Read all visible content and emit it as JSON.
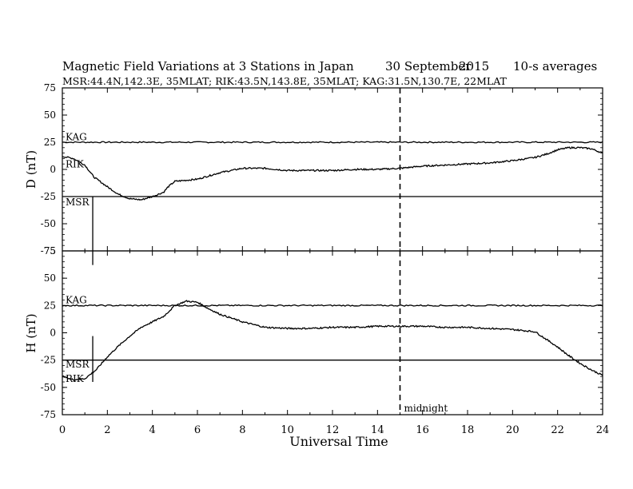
{
  "header": {
    "title": "Magnetic Field Variations at 3 Stations in Japan",
    "date_day": "30 September",
    "date_year": "2015",
    "averaging": "10-s averages",
    "stations_line": "MSR:44.4N,142.3E, 35MLAT;  RIK:43.5N,143.8E, 35MLAT;  KAG:31.5N,130.7E, 22MLAT"
  },
  "chart_data": [
    {
      "type": "line",
      "panel": "top",
      "ylabel": "D (nT)",
      "xlim": [
        0,
        24
      ],
      "ylim": [
        -75,
        75
      ],
      "yticks": [
        75,
        50,
        25,
        0,
        -25,
        -50,
        -75
      ],
      "ytick_labels": [
        "75",
        "50",
        "25",
        "0",
        "-25",
        "-50",
        "-75"
      ],
      "series": [
        {
          "name": "KAG",
          "x": [
            0,
            24
          ],
          "y": [
            25,
            25
          ]
        },
        {
          "name": "RIK",
          "x": [
            0,
            0.5,
            1.0,
            1.4,
            2.0,
            2.5,
            3.0,
            3.5,
            4.0,
            4.5,
            4.7,
            5.0,
            5.5,
            6.0,
            7.0,
            8.0,
            9.0,
            10.0,
            11.0,
            12.0,
            13.0,
            14.0,
            15.0,
            16.0,
            17.0,
            18.0,
            19.0,
            20.0,
            21.0,
            21.5,
            22.0,
            22.5,
            23.0,
            23.5,
            24.0
          ],
          "y": [
            12,
            10,
            4,
            -7,
            -16,
            -23,
            -27,
            -28,
            -25,
            -21,
            -16,
            -11,
            -10,
            -9,
            -3,
            1,
            1,
            -1,
            -1,
            -1,
            0,
            0,
            1,
            3,
            4,
            5,
            6,
            8,
            11,
            14,
            18,
            20,
            20,
            19,
            15
          ]
        },
        {
          "name": "MSR",
          "x": [
            0,
            24
          ],
          "y": [
            -25,
            -25
          ]
        }
      ],
      "annotations": [
        "KAG",
        "RIK",
        "MSR"
      ]
    },
    {
      "type": "line",
      "panel": "bottom",
      "ylabel": "H (nT)",
      "xlabel": "Universal Time",
      "xlim": [
        0,
        24
      ],
      "ylim": [
        -75,
        75
      ],
      "xticks": [
        0,
        2,
        4,
        6,
        8,
        10,
        12,
        14,
        16,
        18,
        20,
        22,
        24
      ],
      "yticks": [
        75,
        50,
        25,
        0,
        -25,
        -50,
        -75
      ],
      "ytick_labels": [
        "75",
        "50",
        "25",
        "0",
        "-25",
        "-50",
        "-75"
      ],
      "series": [
        {
          "name": "KAG",
          "x": [
            0,
            24
          ],
          "y": [
            25,
            25
          ]
        },
        {
          "name": "RIK",
          "x": [
            0,
            0.5,
            1.0,
            1.5,
            2.0,
            2.5,
            3.0,
            3.5,
            4.0,
            4.5,
            5.0,
            5.5,
            6.0,
            6.5,
            7.0,
            8.0,
            9.0,
            10.0,
            11.0,
            12.0,
            13.0,
            14.0,
            15.0,
            16.0,
            17.0,
            18.0,
            19.0,
            20.0,
            21.0,
            21.5,
            22.0,
            22.5,
            23.0,
            23.5,
            24.0
          ],
          "y": [
            -40,
            -43,
            -42,
            -34,
            -22,
            -12,
            -3,
            5,
            10,
            15,
            25,
            29,
            28,
            22,
            17,
            10,
            5,
            4,
            4,
            5,
            5,
            6,
            6,
            6,
            5,
            5,
            4,
            3,
            1,
            -6,
            -13,
            -21,
            -28,
            -34,
            -39
          ]
        },
        {
          "name": "MSR",
          "x": [
            0,
            24
          ],
          "y": [
            -25,
            -25
          ]
        }
      ],
      "annotations": [
        "KAG",
        "MSR",
        "RIK"
      ]
    }
  ],
  "midnight": {
    "x": 15,
    "label": "midnight"
  },
  "vertical_markers": [
    {
      "panel": "top",
      "x": 1.35,
      "y_top": -25,
      "y_bottom": -88
    },
    {
      "panel": "bottom",
      "x": 1.35,
      "y_top": -3,
      "y_bottom": -45
    }
  ]
}
